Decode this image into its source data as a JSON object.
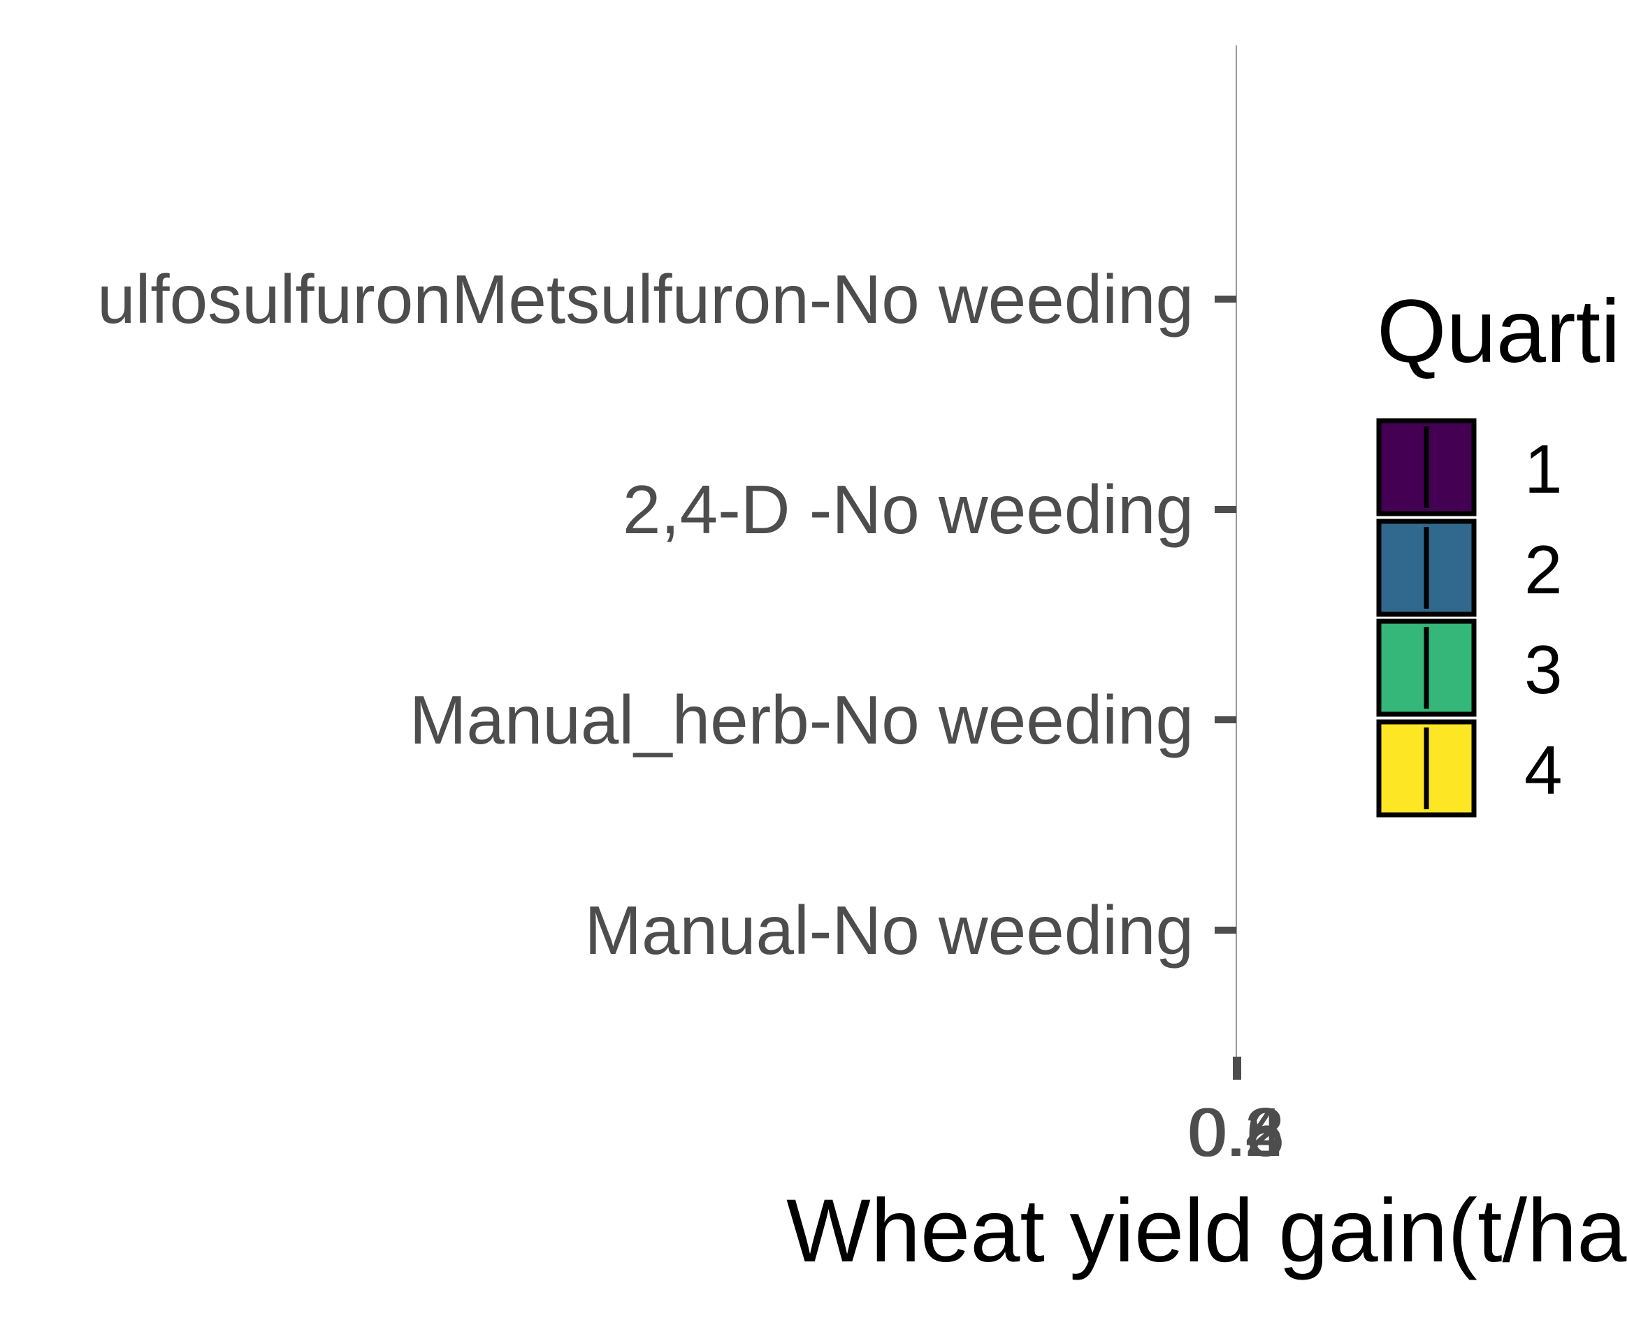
{
  "chart_data": {
    "type": "boxplot",
    "title": "",
    "xlabel": "Wheat yield gain(t/ha)",
    "ylabel": "",
    "categories": [
      "SulfosulfuronMetsulfuron-No weeding",
      "2,4-D -No weeding",
      "Manual_herb-No weeding",
      "Manual-No weeding"
    ],
    "category_labels_shown": [
      "ulfosulfuronMetsulfuron-No weeding",
      "2,4-D -No weeding",
      "Manual_herb-No weeding",
      "Manual-No weeding"
    ],
    "x_ticks": [
      "0.2",
      "0.4",
      "0.6",
      "0.8"
    ],
    "x_tick_overlap": true,
    "legend": {
      "title": "Quartile",
      "title_shown": "Quarti",
      "placement": "right",
      "items": [
        {
          "label": "1",
          "color": "#440154"
        },
        {
          "label": "2",
          "color": "#31688e"
        },
        {
          "label": "3",
          "color": "#35b779"
        },
        {
          "label": "4",
          "color": "#fde725"
        }
      ]
    },
    "grid": false,
    "series": []
  },
  "colors": {
    "axis": "#4d4d4d",
    "ref_line": "#999999",
    "legend_border": "#000000"
  }
}
